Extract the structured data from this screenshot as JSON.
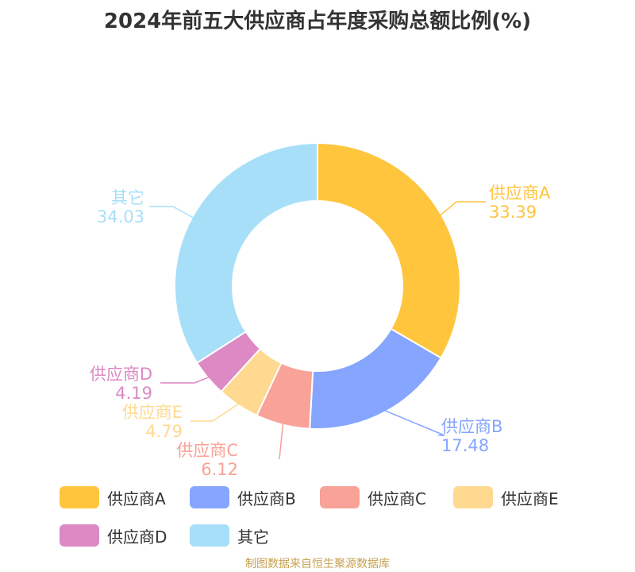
{
  "title": "2024年前五大供应商占年度采购总额比例(%)",
  "source": "制图数据来自恒生聚源数据库",
  "chart_data": {
    "type": "pie",
    "variant": "donut",
    "title": "2024年前五大供应商占年度采购总额比例(%)",
    "unit": "%",
    "slices": [
      {
        "label": "供应商A",
        "value": 33.39,
        "display": "33.39",
        "color": "#ffc53d"
      },
      {
        "label": "供应商B",
        "value": 17.48,
        "display": "17.48",
        "color": "#85a5ff"
      },
      {
        "label": "供应商C",
        "value": 6.12,
        "display": "6.12",
        "color": "#f8a298"
      },
      {
        "label": "供应商E",
        "value": 4.79,
        "display": "4.79",
        "color": "#ffd990"
      },
      {
        "label": "供应商D",
        "value": 4.19,
        "display": "4.19",
        "color": "#dc89c4"
      },
      {
        "label": "其它",
        "value": 34.03,
        "display": "34.03",
        "color": "#a8dff8"
      }
    ],
    "legend": {
      "position": "bottom",
      "items": [
        {
          "label": "供应商A",
          "color": "#ffc53d"
        },
        {
          "label": "供应商B",
          "color": "#85a5ff"
        },
        {
          "label": "供应商C",
          "color": "#f8a298"
        },
        {
          "label": "供应商E",
          "color": "#ffd990"
        },
        {
          "label": "供应商D",
          "color": "#dc89c4"
        },
        {
          "label": "其它",
          "color": "#a8dff8"
        }
      ]
    }
  }
}
